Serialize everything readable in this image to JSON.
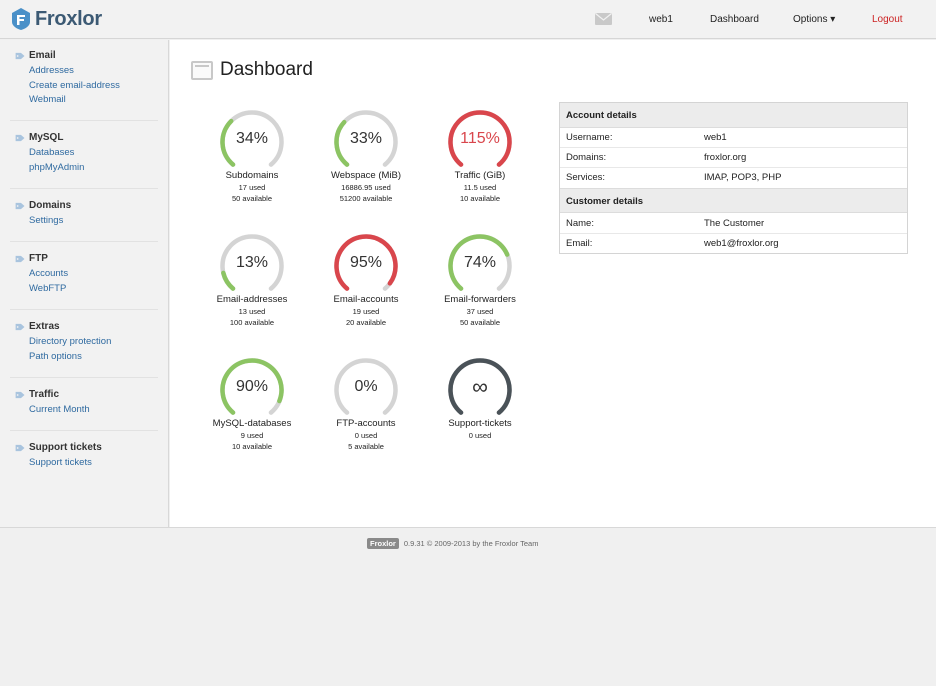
{
  "header": {
    "brand": "Froxlor",
    "nav": {
      "user": "web1",
      "dashboard": "Dashboard",
      "options": "Options ▾",
      "logout": "Logout"
    },
    "colors": {
      "brand": "#3c5a74",
      "logout": "#cc2222"
    }
  },
  "sidebar": {
    "groups": [
      {
        "title": "Email",
        "links": [
          "Addresses",
          "Create email-address",
          "Webmail"
        ]
      },
      {
        "title": "MySQL",
        "links": [
          "Databases",
          "phpMyAdmin"
        ]
      },
      {
        "title": "Domains",
        "links": [
          "Settings"
        ]
      },
      {
        "title": "FTP",
        "links": [
          "Accounts",
          "WebFTP"
        ]
      },
      {
        "title": "Extras",
        "links": [
          "Directory protection",
          "Path options"
        ]
      },
      {
        "title": "Traffic",
        "links": [
          "Current Month"
        ]
      },
      {
        "title": "Support tickets",
        "links": [
          "Support tickets"
        ]
      }
    ]
  },
  "main": {
    "title": "Dashboard",
    "gauges": [
      {
        "pct": "34%",
        "label": "Subdomains",
        "used": "17 used",
        "available": "50 available",
        "fraction": 0.34,
        "color": "#8cc463",
        "text_color": "#333333"
      },
      {
        "pct": "33%",
        "label": "Webspace (MiB)",
        "used": "16886.95 used",
        "available": "51200 available",
        "fraction": 0.33,
        "color": "#8cc463",
        "text_color": "#333333"
      },
      {
        "pct": "115%",
        "label": "Traffic (GiB)",
        "used": "11.5 used",
        "available": "10 available",
        "fraction": 1.0,
        "color": "#d9464c",
        "text_color": "#d9464c"
      },
      {
        "pct": "13%",
        "label": "Email-addresses",
        "used": "13 used",
        "available": "100 available",
        "fraction": 0.13,
        "color": "#8cc463",
        "text_color": "#333333"
      },
      {
        "pct": "95%",
        "label": "Email-accounts",
        "used": "19 used",
        "available": "20 available",
        "fraction": 0.95,
        "color": "#d9464c",
        "text_color": "#333333"
      },
      {
        "pct": "74%",
        "label": "Email-forwarders",
        "used": "37 used",
        "available": "50 available",
        "fraction": 0.74,
        "color": "#8cc463",
        "text_color": "#333333"
      },
      {
        "pct": "90%",
        "label": "MySQL-databases",
        "used": "9 used",
        "available": "10 available",
        "fraction": 0.9,
        "color": "#8cc463",
        "text_color": "#333333"
      },
      {
        "pct": "0%",
        "label": "FTP-accounts",
        "used": "0 used",
        "available": "5 available",
        "fraction": 0.0,
        "color": "#8cc463",
        "text_color": "#333333"
      },
      {
        "pct": "∞",
        "label": "Support-tickets",
        "used": "0 used",
        "available": "",
        "fraction": 1.0,
        "color": "#4a5258",
        "text_color": "#333333"
      }
    ]
  },
  "account": {
    "account_title": "Account details",
    "account_rows": [
      {
        "key": "Username:",
        "value": "web1"
      },
      {
        "key": "Domains:",
        "value": "froxlor.org"
      },
      {
        "key": "Services:",
        "value": "IMAP, POP3, PHP"
      }
    ],
    "customer_title": "Customer details",
    "customer_rows": [
      {
        "key": "Name:",
        "value": "The Customer"
      },
      {
        "key": "Email:",
        "value": "web1@froxlor.org"
      }
    ]
  },
  "footer": {
    "badge": "Froxlor",
    "text": "0.9.31 © 2009-2013 by the Froxlor Team"
  }
}
